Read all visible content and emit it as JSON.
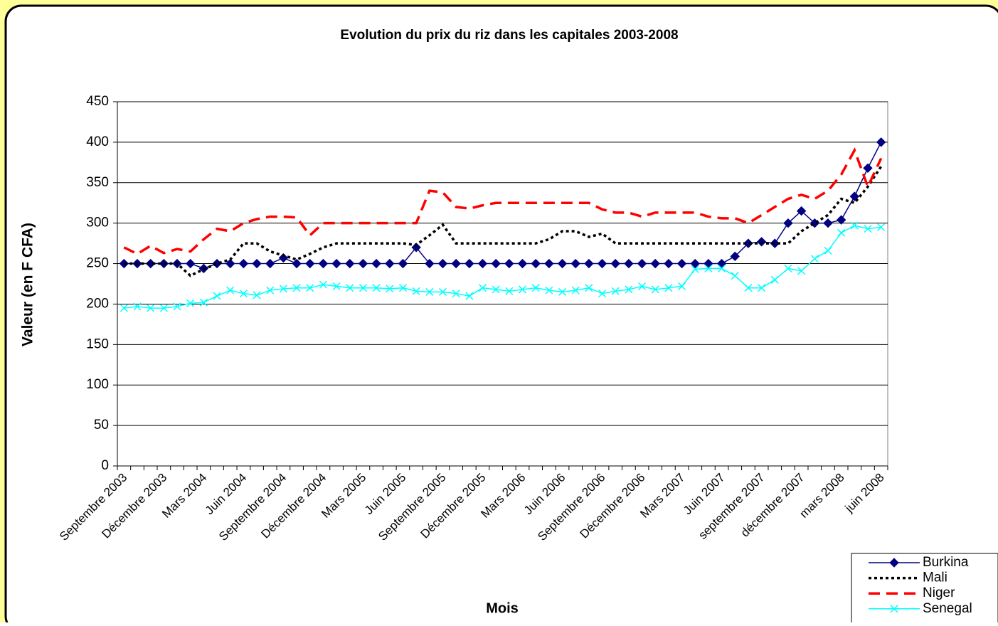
{
  "chart_data": {
    "type": "line",
    "title": "Evolution du prix du riz dans les capitales 2003-2008",
    "xlabel": "Mois",
    "ylabel": "Valeur (en F CFA)",
    "categories": [
      "Septembre 2003",
      null,
      null,
      "Décembre 2003",
      null,
      null,
      "Mars 2004",
      null,
      null,
      "Juin 2004",
      null,
      null,
      "Septembre 2004",
      null,
      null,
      "Décembre 2004",
      null,
      null,
      "Mars 2005",
      null,
      null,
      "Juin 2005",
      null,
      null,
      "Septembre 2005",
      null,
      null,
      "Décembre 2005",
      null,
      null,
      "Mars 2006",
      null,
      null,
      "Juin 2006",
      null,
      null,
      "Septembre 2006",
      null,
      null,
      "Décembre 2006",
      null,
      null,
      "Mars 2007",
      null,
      null,
      "Juin 2007",
      null,
      null,
      "septembre 2007",
      null,
      null,
      "décembre 2007",
      null,
      null,
      "mars 2008",
      null,
      null,
      "juin 2008"
    ],
    "series": [
      {
        "name": "Burkina",
        "color": "#000080",
        "dash": "solid",
        "marker": "diamond",
        "values": [
          250,
          250,
          250,
          250,
          250,
          250,
          244,
          250,
          250,
          250,
          250,
          250,
          257,
          250,
          250,
          250,
          250,
          250,
          250,
          250,
          250,
          250,
          270,
          250,
          250,
          250,
          250,
          250,
          250,
          250,
          250,
          250,
          250,
          250,
          250,
          250,
          250,
          250,
          250,
          250,
          250,
          250,
          250,
          250,
          250,
          250,
          259,
          275,
          277,
          275,
          300,
          315,
          300,
          300,
          304,
          333,
          368,
          400
        ]
      },
      {
        "name": "Mali",
        "color": "#000000",
        "dash": "dotted",
        "marker": null,
        "values": [
          250,
          250,
          250,
          250,
          250,
          235,
          243,
          250,
          255,
          275,
          275,
          265,
          260,
          255,
          262,
          270,
          275,
          275,
          275,
          275,
          275,
          275,
          273,
          285,
          298,
          275,
          275,
          275,
          275,
          275,
          275,
          275,
          280,
          290,
          290,
          283,
          287,
          275,
          275,
          275,
          275,
          275,
          275,
          275,
          275,
          275,
          275,
          275,
          275,
          275,
          275,
          290,
          300,
          310,
          330,
          325,
          345,
          370
        ]
      },
      {
        "name": "Niger",
        "color": "#ff0000",
        "dash": "dashed",
        "marker": null,
        "values": [
          270,
          262,
          272,
          263,
          268,
          265,
          280,
          293,
          290,
          300,
          305,
          308,
          308,
          307,
          285,
          300,
          300,
          300,
          300,
          300,
          300,
          300,
          300,
          340,
          338,
          320,
          318,
          322,
          325,
          325,
          325,
          325,
          325,
          325,
          325,
          325,
          317,
          313,
          313,
          308,
          313,
          313,
          313,
          313,
          308,
          306,
          306,
          300,
          310,
          320,
          330,
          335,
          330,
          340,
          360,
          390,
          345,
          380
        ]
      },
      {
        "name": "Senegal",
        "color": "#00ffff",
        "dash": "solid",
        "marker": "x",
        "values": [
          195,
          197,
          195,
          195,
          197,
          201,
          202,
          210,
          217,
          213,
          211,
          217,
          219,
          220,
          220,
          224,
          222,
          220,
          220,
          220,
          219,
          220,
          216,
          215,
          215,
          213,
          210,
          220,
          218,
          216,
          218,
          220,
          217,
          215,
          217,
          220,
          213,
          216,
          218,
          222,
          218,
          220,
          222,
          243,
          244,
          244,
          235,
          220,
          220,
          230,
          244,
          241,
          256,
          266,
          288,
          297,
          293,
          295
        ]
      }
    ],
    "ylim": [
      0,
      450
    ],
    "yticks": [
      0,
      50,
      100,
      150,
      200,
      250,
      300,
      350,
      400,
      450
    ],
    "grid": true,
    "legend": "lower right"
  }
}
